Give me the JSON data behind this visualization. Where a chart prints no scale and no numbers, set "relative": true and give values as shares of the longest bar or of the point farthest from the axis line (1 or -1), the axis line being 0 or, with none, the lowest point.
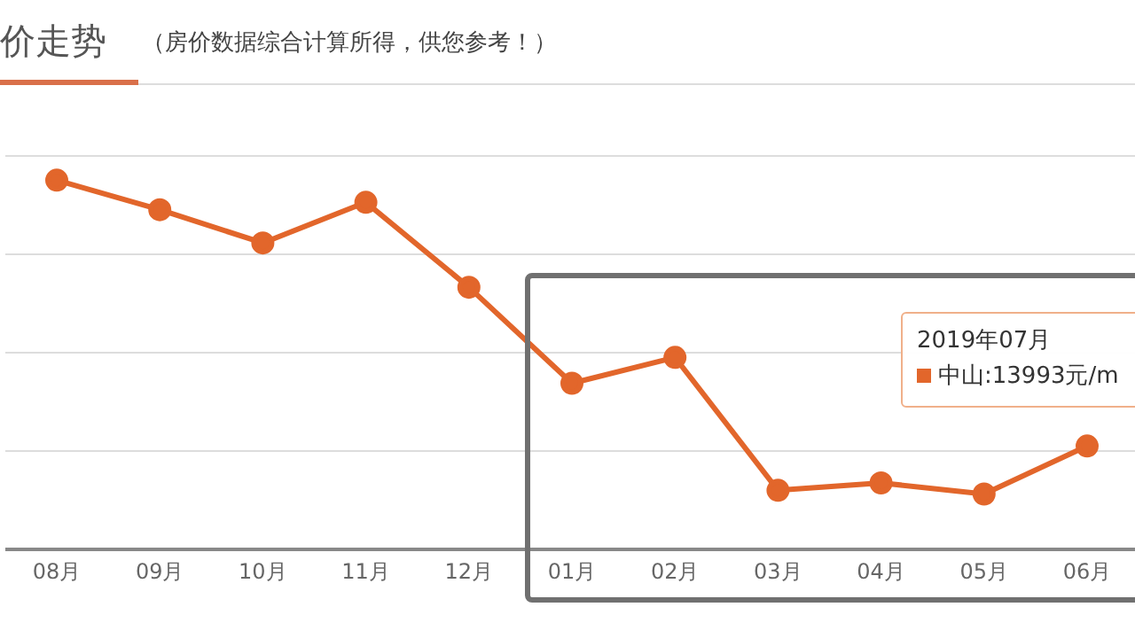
{
  "chart_data": {
    "type": "line",
    "title": "价走势",
    "subtitle": "（房价数据综合计算所得，供您参考！）",
    "categories": [
      "08月",
      "09月",
      "10月",
      "11月",
      "12月",
      "01月",
      "02月",
      "03月",
      "04月",
      "05月",
      "06月"
    ],
    "series": [
      {
        "color": "#e2662b",
        "values": [
          1,
          0.92,
          0.83,
          0.94,
          0.71,
          0.45,
          0.52,
          0.16,
          0.18,
          0.15,
          0.28
        ]
      }
    ],
    "relative": true,
    "grid": "y",
    "marker": "circle",
    "line_style": "solid",
    "legend": false,
    "annotations": [
      "2019年07月",
      "中山:13993元/m"
    ]
  }
}
